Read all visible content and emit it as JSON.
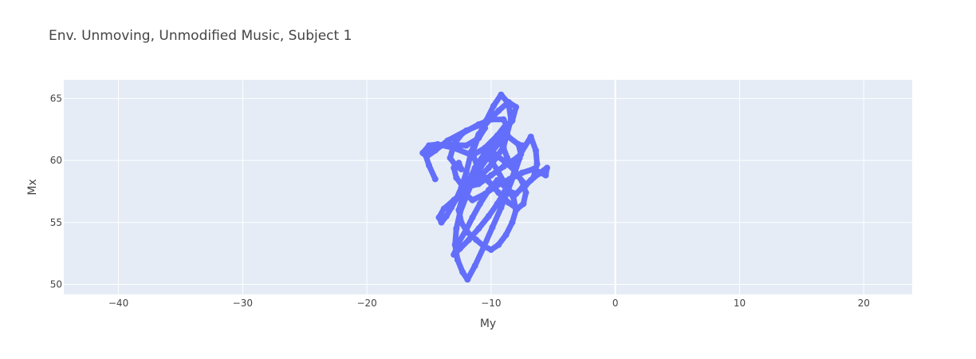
{
  "chart_data": {
    "type": "scatter",
    "title": "Env. Unmoving, Unmodified Music, Subject 1",
    "xlabel": "My",
    "ylabel": "Mx",
    "xlim": [
      -44.4,
      23.9
    ],
    "ylim": [
      49.2,
      66.5
    ],
    "xticks": [
      -40,
      -30,
      -20,
      -10,
      0,
      10,
      20
    ],
    "xtick_labels": [
      "−40",
      "−30",
      "−20",
      "−10",
      "0",
      "10",
      "20"
    ],
    "yticks": [
      50,
      55,
      60,
      65
    ],
    "ytick_labels": [
      "50",
      "55",
      "60",
      "65"
    ],
    "grid": true,
    "legend": "none",
    "colors": {
      "marker": "#636efa",
      "plot_bg": "#e5ecf6",
      "grid": "#ffffff",
      "text": "#444444"
    },
    "series": [
      {
        "mode": "lines+markers",
        "x": [
          -14.5,
          -15.0,
          -15.3,
          -14.8,
          -13.5,
          -12.0,
          -11.0,
          -10.5,
          -10.8,
          -12.0,
          -13.5,
          -14.5,
          -15.2,
          -15.5,
          -15.0,
          -14.3,
          -13.0,
          -11.5,
          -10.5,
          -9.5,
          -8.8,
          -9.0,
          -10.0,
          -11.0,
          -12.3,
          -13.0,
          -13.3,
          -12.8,
          -12.4,
          -12.6,
          -13.0,
          -12.8,
          -12.2,
          -11.0,
          -10.0,
          -9.0,
          -8.2,
          -7.6,
          -7.8,
          -8.6,
          -9.6,
          -10.5,
          -11.3,
          -11.8,
          -12.2,
          -11.5,
          -10.5,
          -9.5,
          -8.5,
          -7.5,
          -6.6,
          -6.0,
          -5.6,
          -5.5,
          -6.2,
          -6.8,
          -7.5,
          -8.0,
          -8.5,
          -9.0,
          -9.5,
          -10.0,
          -10.2,
          -9.8,
          -9.0,
          -8.3,
          -8.0,
          -8.6,
          -9.4,
          -10.3,
          -11.0,
          -11.6,
          -12.0,
          -12.4,
          -12.8,
          -13.2,
          -13.6,
          -14.0,
          -14.2,
          -13.8,
          -13.0,
          -12.2,
          -11.4,
          -10.8,
          -10.2,
          -9.6,
          -9.0,
          -8.7,
          -8.4,
          -8.6,
          -9.2,
          -9.8,
          -10.4,
          -11.0,
          -11.5,
          -11.0,
          -10.2,
          -9.4,
          -8.6,
          -7.9,
          -7.4,
          -7.2,
          -7.5,
          -8.1,
          -8.9,
          -9.7,
          -10.5,
          -11.2,
          -11.8,
          -12.3,
          -12.6,
          -12.4,
          -11.9,
          -11.2,
          -10.6,
          -10.0,
          -9.4,
          -8.8,
          -8.3,
          -8.0,
          -8.2,
          -8.8,
          -9.5,
          -10.2,
          -10.9,
          -11.5,
          -12.0,
          -12.6,
          -13.0,
          -12.5,
          -11.8,
          -11.0,
          -10.2,
          -9.5,
          -8.9,
          -8.4,
          -8.1,
          -7.9,
          -6.8,
          -6.4,
          -6.3,
          -6.6,
          -7.2,
          -7.8,
          -8.3,
          -8.7,
          -9.0,
          -9.3,
          -10.0,
          -10.8,
          -11.5,
          -12.0,
          -12.5,
          -12.8,
          -12.9,
          -12.7,
          -12.3,
          -11.9,
          -11.3,
          -10.6,
          -9.9,
          -9.2,
          -8.6,
          -8.1,
          -7.7,
          -7.5
        ],
        "y": [
          58.5,
          59.6,
          60.5,
          61.2,
          61.3,
          61.2,
          61.8,
          62.6,
          62.9,
          62.4,
          61.6,
          60.8,
          60.3,
          60.6,
          61.2,
          61.3,
          61.0,
          60.4,
          61.0,
          62.0,
          62.9,
          63.3,
          63.3,
          62.9,
          62.2,
          61.3,
          60.2,
          59.5,
          59.3,
          59.8,
          59.4,
          58.6,
          57.8,
          58.1,
          58.8,
          59.5,
          60.0,
          60.5,
          61.3,
          61.9,
          61.5,
          60.6,
          59.4,
          58.3,
          57.4,
          56.8,
          57.3,
          58.0,
          58.5,
          59.0,
          59.3,
          59.0,
          58.8,
          59.4,
          58.9,
          58.4,
          57.8,
          57.3,
          57.5,
          58.3,
          59.2,
          60.0,
          60.8,
          61.5,
          62.3,
          63.2,
          64.3,
          64.7,
          64.0,
          63.1,
          62.1,
          60.7,
          59.0,
          57.8,
          56.9,
          56.2,
          55.5,
          55.0,
          55.4,
          56.1,
          56.8,
          57.5,
          58.1,
          58.8,
          59.4,
          60.2,
          61.1,
          62.2,
          63.3,
          64.6,
          65.3,
          64.4,
          63.2,
          62.0,
          60.6,
          59.2,
          58.3,
          57.4,
          56.6,
          56.1,
          56.5,
          57.4,
          58.3,
          59.2,
          59.9,
          60.5,
          60.0,
          59.1,
          58.0,
          57.0,
          56.0,
          55.0,
          54.2,
          53.6,
          53.1,
          52.8,
          53.2,
          54.0,
          55.0,
          56.0,
          57.0,
          57.8,
          58.4,
          57.6,
          56.5,
          55.4,
          54.4,
          53.4,
          52.4,
          52.9,
          53.6,
          54.5,
          55.5,
          56.5,
          57.5,
          58.3,
          59.2,
          60.1,
          61.9,
          60.8,
          59.7,
          58.6,
          58.0,
          58.7,
          59.4,
          60.2,
          61.0,
          61.5,
          60.6,
          59.5,
          58.3,
          57.1,
          55.8,
          54.5,
          53.2,
          52.0,
          51.0,
          50.4,
          51.5,
          53.0,
          54.6,
          56.2,
          57.7,
          59.0,
          60.2,
          61.2
        ]
      }
    ]
  }
}
